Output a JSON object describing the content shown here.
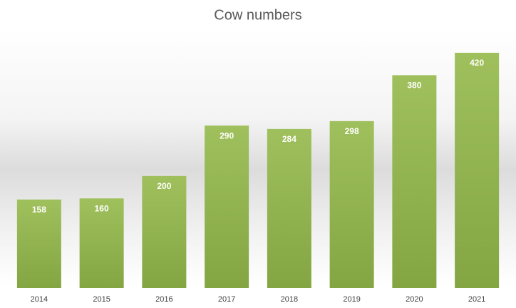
{
  "chart_data": {
    "type": "bar",
    "title": "Cow numbers",
    "categories": [
      "2014",
      "2015",
      "2016",
      "2017",
      "2018",
      "2019",
      "2020",
      "2021"
    ],
    "values": [
      158,
      160,
      200,
      290,
      284,
      298,
      380,
      420
    ],
    "color": "#9bbb59"
  }
}
